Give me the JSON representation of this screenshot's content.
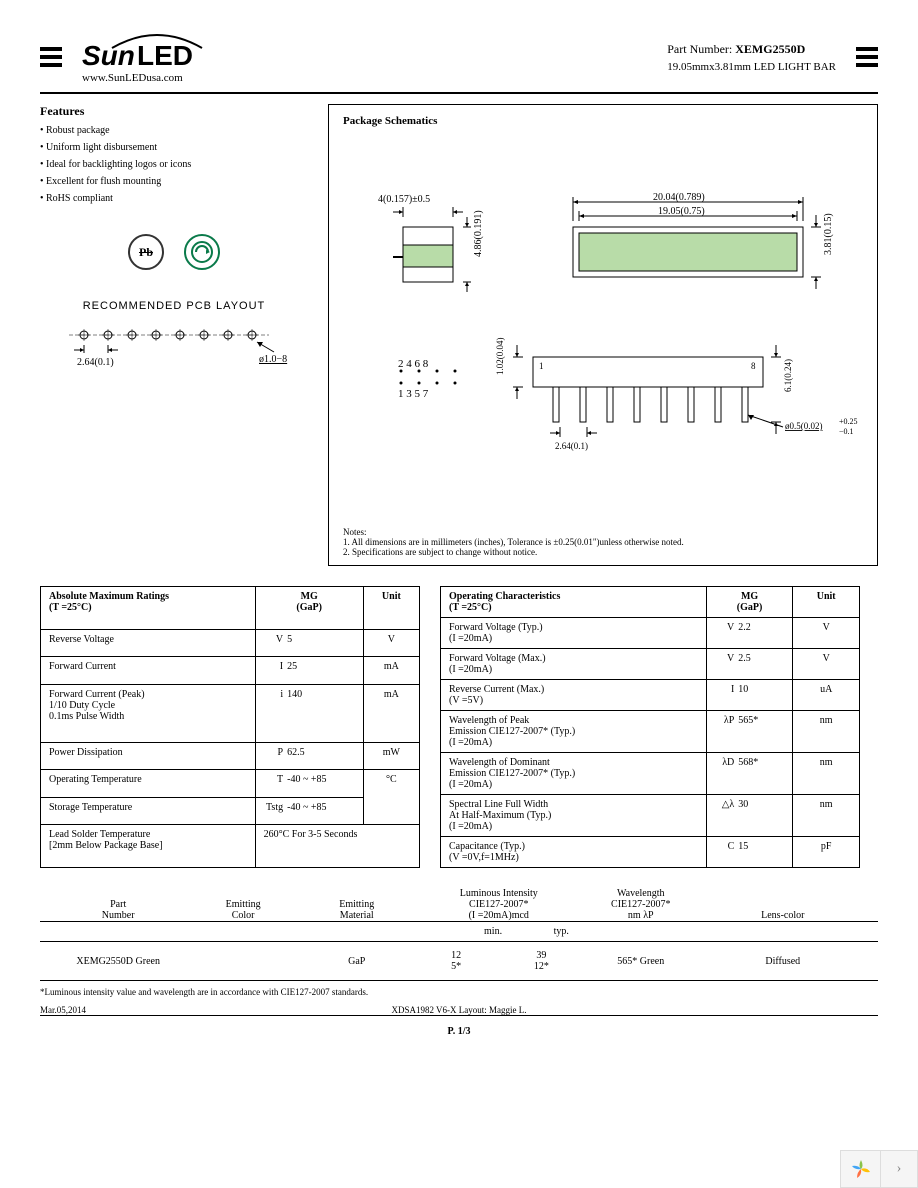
{
  "header": {
    "logo_text": "SunLED",
    "url": "www.SunLEDusa.com",
    "part_label": "Part Number: ",
    "part_number": "XEMG2550D",
    "description": "19.05mmx3.81mm LED LIGHT BAR"
  },
  "features": {
    "title": "Features",
    "items": [
      "Robust package",
      "Uniform light disbursement",
      "Ideal for backlighting logos or icons",
      "Excellent for flush mounting",
      "RoHS compliant"
    ]
  },
  "pcb": {
    "title": "RECOMMENDED PCB LAYOUT",
    "pitch": "2.64(0.1)",
    "hole": "ø1.0−8"
  },
  "schematic": {
    "title": "Package Schematics",
    "dims": {
      "side_w": "4(0.157)±0.5",
      "side_h": "4.86(0.191)",
      "top_w_outer": "20.04(0.789)",
      "top_w_inner": "19.05(0.75)",
      "top_h": "3.81(0.15)",
      "front_h_outer": "6.1(0.24)",
      "front_h_inner": "1.02(0.04)",
      "front_pitch": "2.64(0.1)",
      "lead_dia": "ø0.5(0.02)",
      "lead_tol": "+0.25\n−0.1",
      "pin_top": "2  4  6  8",
      "pin_bot": "1  3  5  7",
      "pin1": "1",
      "pin8": "8"
    },
    "notes_title": "Notes:",
    "notes": [
      "1. All dimensions are in millimeters (inches), Tolerance is ±0.25(0.01\")unless otherwise noted.",
      "2. Specifications are subject to change without notice."
    ]
  },
  "abs_max": {
    "title": "Absolute Maximum Ratings",
    "condition": "(T  =25°C)",
    "col_mg": "MG",
    "col_mg_sub": "(GaP)",
    "col_unit": "Unit",
    "rows": [
      {
        "param": "Reverse Voltage",
        "sym": "V",
        "val": "5",
        "unit": "V"
      },
      {
        "param": "Forward Current",
        "sym": "I",
        "val": "25",
        "unit": "mA"
      },
      {
        "param": "Forward Current (Peak)\n1/10 Duty Cycle\n0.1ms Pulse Width",
        "sym": "i",
        "val": "140",
        "unit": "mA"
      },
      {
        "param": "Power Dissipation",
        "sym": "P",
        "val": "62.5",
        "unit": "mW"
      },
      {
        "param": "Operating Temperature",
        "sym": "T",
        "val": "-40 ~ +85",
        "unit_rowspan": "°C"
      },
      {
        "param": "Storage Temperature",
        "sym": "Tstg",
        "val": "-40 ~ +85"
      },
      {
        "param": "Lead Solder Temperature\n[2mm Below Package Base]",
        "sym": "",
        "val": "260°C For 3-5 Seconds",
        "colspan": true
      }
    ]
  },
  "op_char": {
    "title": "Operating Characteristics",
    "condition": "(T  =25°C)",
    "col_mg": "MG",
    "col_mg_sub": "(GaP)",
    "col_unit": "Unit",
    "rows": [
      {
        "param": "Forward Voltage (Typ.)\n(I  =20mA)",
        "sym": "V",
        "val": "2.2",
        "unit": "V"
      },
      {
        "param": "Forward Voltage (Max.)\n(I  =20mA)",
        "sym": "V",
        "val": "2.5",
        "unit": "V"
      },
      {
        "param": "Reverse Current (Max.)\n(V  =5V)",
        "sym": "I",
        "val": "10",
        "unit": "uA"
      },
      {
        "param": "Wavelength of Peak\nEmission CIE127-2007*        (Typ.)\n(I  =20mA)",
        "sym": "λP",
        "val": "565*",
        "unit": "nm"
      },
      {
        "param": "Wavelength of Dominant\nEmission CIE127-2007*        (Typ.)\n(I  =20mA)",
        "sym": "λD",
        "val": "568*",
        "unit": "nm"
      },
      {
        "param": "Spectral Line Full Width\nAt Half-Maximum (Typ.)\n(I  =20mA)",
        "sym": "△λ",
        "val": "30",
        "unit": "nm"
      },
      {
        "param": "Capacitance (Typ.)\n(V  =0V,f=1MHz)",
        "sym": "C",
        "val": "15",
        "unit": "pF"
      }
    ]
  },
  "product": {
    "headers": {
      "part": "Part\nNumber",
      "color": "Emitting\nColor",
      "material": "Emitting\nMaterial",
      "luminous": "Luminous Intensity\nCIE127-2007*\n(I  =20mA)mcd",
      "wavelength": "Wavelength\nCIE127-2007*\nnm λP",
      "lens": "Lens-color"
    },
    "sub": {
      "min": "min.",
      "typ": "typ."
    },
    "row": {
      "part": "XEMG2550D",
      "color": "Green",
      "material": "GaP",
      "min": "12\n5*",
      "typ": "39\n12*",
      "wavelength": "565* Green",
      "lens": "Diffused"
    }
  },
  "footnote": "*Luminous intensity value and wavelength are in accordance with CIE127-2007 standards.",
  "footer": {
    "date": "Mar.05,2014",
    "center": "XDSA1982    V6-X    Layout: Maggie L."
  },
  "page": "P. 1/3"
}
